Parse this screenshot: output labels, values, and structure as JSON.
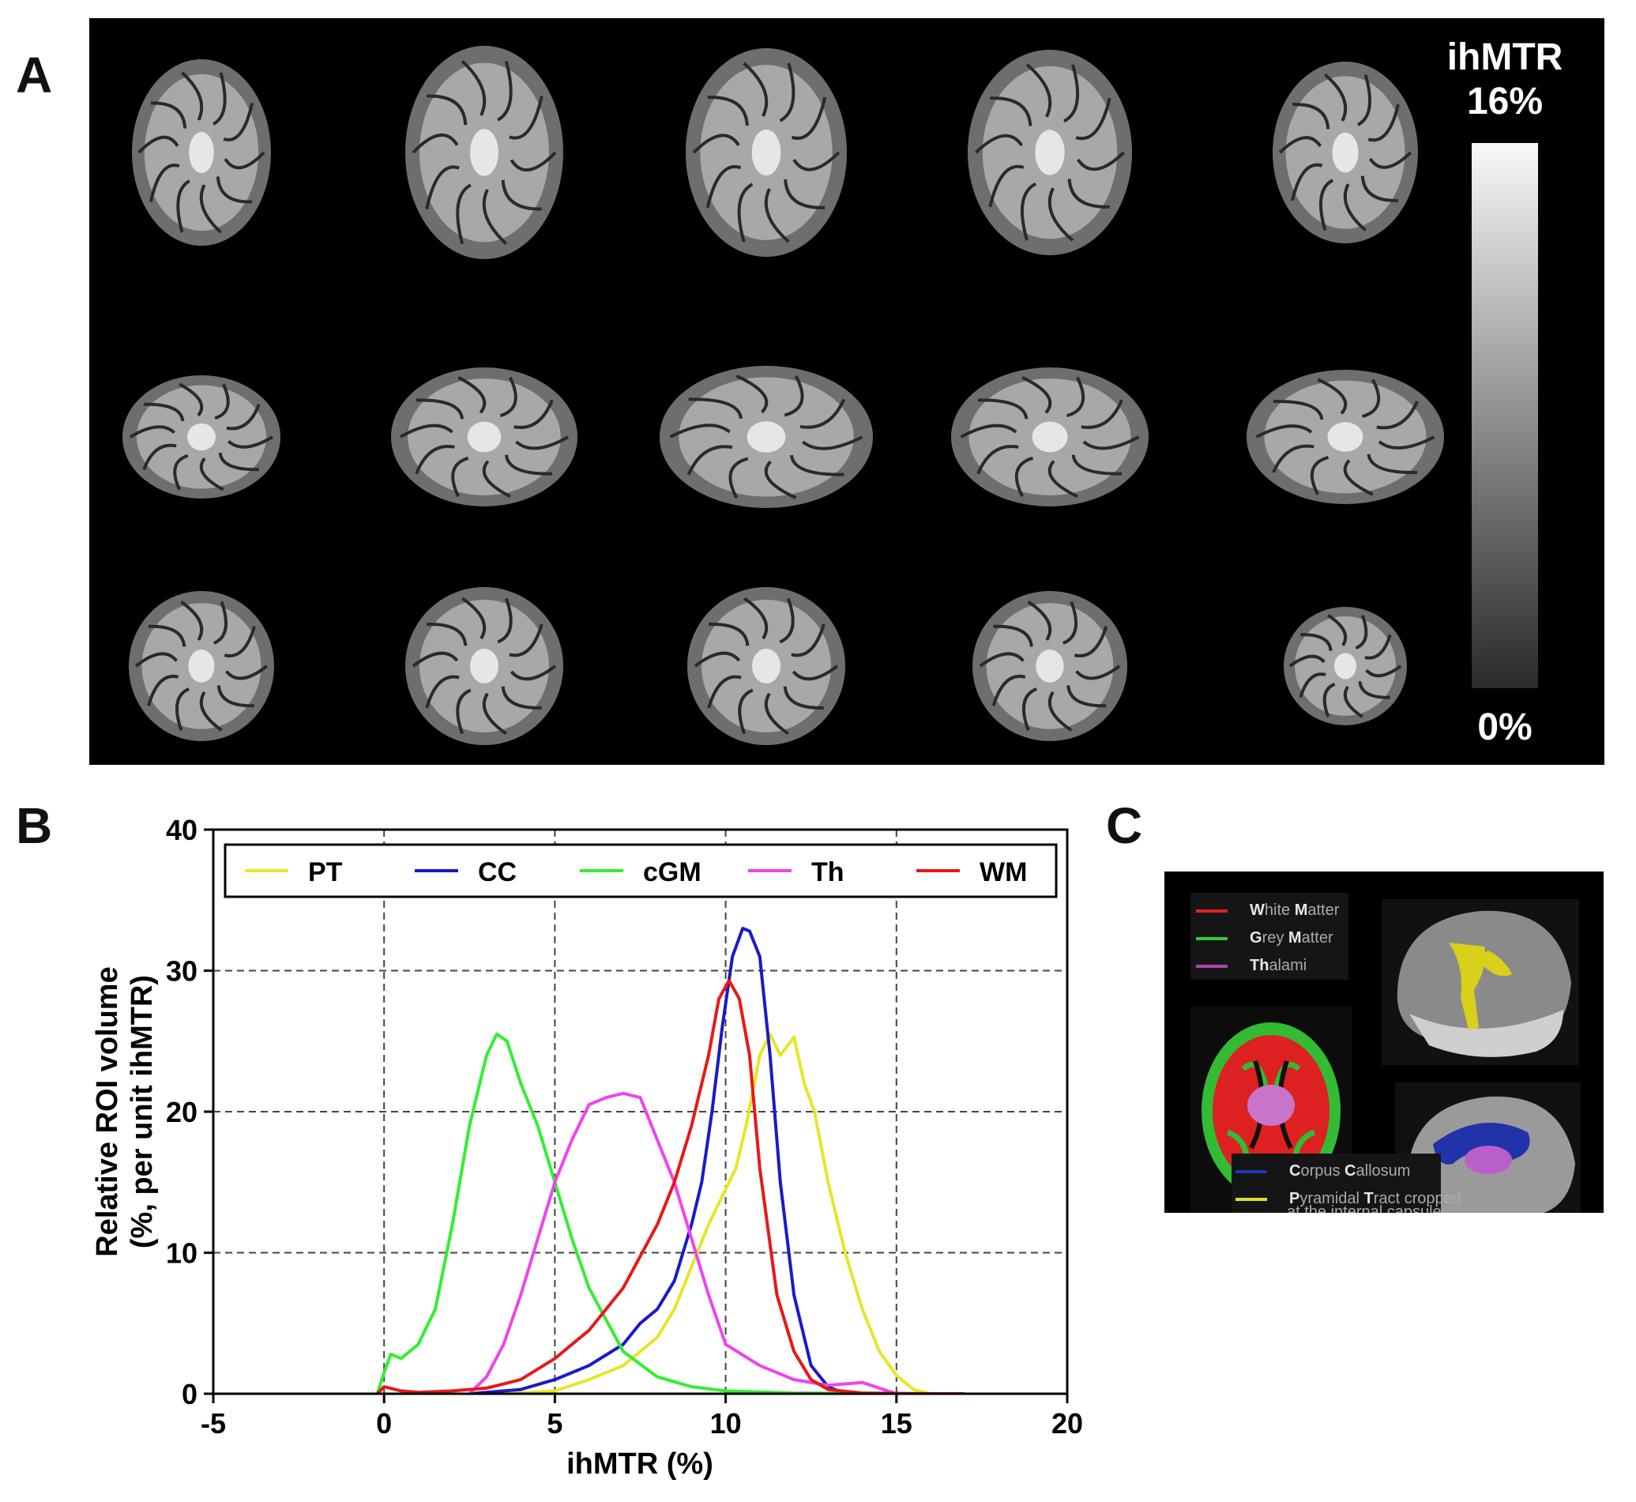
{
  "panels": {
    "a": "A",
    "b": "B",
    "c": "C"
  },
  "colorbar": {
    "title_line1": "ihMTR",
    "title_line2": "16%",
    "min_label": "0%"
  },
  "brain_grid": {
    "rows": [
      "axial",
      "sagittal",
      "coronal"
    ],
    "columns": 5
  },
  "chart_data": {
    "type": "line",
    "xlabel": "ihMTR (%)",
    "ylabel_line1": "Relative ROI volume",
    "ylabel_line2": "(%, per unit ihMTR)",
    "xlim": [
      -5,
      20
    ],
    "ylim": [
      0,
      40
    ],
    "xticks": [
      "-5",
      "0",
      "5",
      "10",
      "15",
      "20"
    ],
    "yticks": [
      "0",
      "10",
      "20",
      "30",
      "40"
    ],
    "grid": "dashed",
    "legend_position": "top",
    "series": [
      {
        "name": "PT",
        "color": "#e6e62a",
        "x": [
          3.5,
          5,
          6,
          7,
          7.5,
          8,
          8.5,
          9,
          9.5,
          10,
          10.3,
          10.6,
          11,
          11.3,
          11.6,
          12,
          12.3,
          12.6,
          13,
          13.5,
          14,
          14.5,
          15,
          15.5,
          16
        ],
        "y": [
          0,
          0.2,
          1,
          2,
          3,
          4,
          6,
          9,
          12,
          14.5,
          16,
          19,
          24,
          25.5,
          24,
          25.3,
          22,
          20,
          15,
          10,
          6,
          3,
          1.3,
          0.3,
          0
        ]
      },
      {
        "name": "CC",
        "color": "#1a1ac8",
        "x": [
          2.5,
          4,
          5,
          6,
          7,
          7.5,
          8,
          8.5,
          9,
          9.3,
          9.6,
          9.9,
          10.2,
          10.5,
          10.7,
          11,
          11.3,
          11.6,
          12,
          12.5,
          13,
          13.5
        ],
        "y": [
          0,
          0.3,
          1,
          2,
          3.5,
          5,
          6,
          8,
          12,
          15,
          20,
          26,
          31,
          33,
          32.8,
          31,
          24,
          15,
          7,
          2,
          0.5,
          0
        ]
      },
      {
        "name": "cGM",
        "color": "#33ee33",
        "x": [
          -0.2,
          0,
          0.2,
          0.5,
          1,
          1.5,
          2,
          2.5,
          3,
          3.3,
          3.6,
          4,
          4.5,
          5,
          5.5,
          6,
          7,
          8,
          9,
          10,
          12,
          16
        ],
        "y": [
          0,
          1.5,
          2.8,
          2.5,
          3.5,
          6,
          12,
          19,
          24,
          25.5,
          25,
          22,
          19,
          15,
          11,
          7.5,
          3,
          1.2,
          0.5,
          0.2,
          0.05,
          0
        ]
      },
      {
        "name": "Th",
        "color": "#ee44ee",
        "x": [
          2.5,
          3,
          3.5,
          4,
          4.5,
          5,
          5.5,
          6,
          6.5,
          7,
          7.5,
          8,
          8.5,
          9,
          9.5,
          10,
          11,
          12,
          13,
          14,
          15
        ],
        "y": [
          0,
          1.2,
          3.5,
          7,
          11,
          15,
          18,
          20.5,
          21,
          21.3,
          21,
          18,
          15,
          11,
          7,
          3.5,
          2,
          1,
          0.6,
          0.8,
          0
        ]
      },
      {
        "name": "WM",
        "color": "#e81818",
        "x": [
          -0.2,
          0,
          0.5,
          1,
          2,
          3,
          4,
          5,
          6,
          7,
          8,
          8.5,
          9,
          9.5,
          9.8,
          10.1,
          10.4,
          10.7,
          11,
          11.5,
          12,
          12.5,
          13,
          14,
          16,
          17
        ],
        "y": [
          0,
          0.5,
          0.2,
          0.1,
          0.2,
          0.4,
          1,
          2.5,
          4.5,
          7.5,
          12,
          15,
          19,
          24,
          28,
          29.3,
          28,
          24,
          16,
          7,
          3,
          1,
          0.3,
          0.05,
          0,
          0
        ]
      }
    ]
  },
  "panel_c": {
    "top_legend": [
      {
        "initial": "W",
        "rest_a": "hite ",
        "initial2": "M",
        "rest_b": "atter",
        "color": "#dd2222"
      },
      {
        "initial": "G",
        "rest_a": "rey ",
        "initial2": "M",
        "rest_b": "atter",
        "color": "#33cc33"
      },
      {
        "initial": "Th",
        "rest_a": "alami",
        "initial2": "",
        "rest_b": "",
        "color": "#aa44aa"
      }
    ],
    "bottom_legend": [
      {
        "initial": "C",
        "rest_a": "orpus ",
        "initial2": "C",
        "rest_b": "allosum",
        "color": "#2233bb"
      },
      {
        "initial": "P",
        "rest_a": "yramidal ",
        "initial2": "T",
        "rest_b": "ract cropped",
        "color": "#dddd33"
      }
    ],
    "bottom_legend_line3": "at the internal capsule"
  }
}
